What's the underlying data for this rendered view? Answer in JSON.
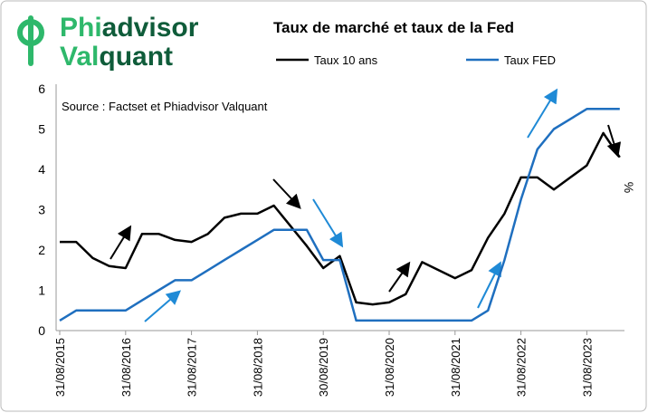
{
  "logo": {
    "part1a": "Phi",
    "part1b": "advisor",
    "part2a": "Val",
    "part2b": "quant"
  },
  "chart_data": {
    "type": "line",
    "title": "Taux de marché et taux de la Fed",
    "annotation": "Source : Factset et Phiadvisor Valquant",
    "y_label": "%",
    "categories": [
      "31/08/2015",
      null,
      null,
      null,
      "31/08/2016",
      null,
      null,
      null,
      "31/08/2017",
      null,
      null,
      null,
      "31/08/2018",
      null,
      null,
      null,
      "30/08/2019",
      null,
      null,
      null,
      "31/08/2020",
      null,
      null,
      null,
      "31/08/2021",
      null,
      null,
      null,
      "31/08/2022",
      null,
      null,
      null,
      "31/08/2023",
      null,
      null
    ],
    "series": [
      {
        "name": "Taux 10 ans",
        "color": "#000000",
        "values": [
          2.2,
          2.2,
          1.8,
          1.6,
          1.55,
          2.4,
          2.4,
          2.25,
          2.2,
          2.4,
          2.8,
          2.9,
          2.9,
          3.1,
          2.6,
          2.1,
          1.55,
          1.85,
          0.7,
          0.65,
          0.7,
          0.9,
          1.7,
          1.5,
          1.3,
          1.5,
          2.3,
          2.9,
          3.8,
          3.8,
          3.5,
          3.8,
          4.1,
          4.9,
          4.3
        ]
      },
      {
        "name": "Taux FED",
        "color": "#1f6fbf",
        "values": [
          0.25,
          0.5,
          0.5,
          0.5,
          0.5,
          0.75,
          1.0,
          1.25,
          1.25,
          1.5,
          1.75,
          2.0,
          2.25,
          2.5,
          2.5,
          2.5,
          1.75,
          1.75,
          0.25,
          0.25,
          0.25,
          0.25,
          0.25,
          0.25,
          0.25,
          0.25,
          0.5,
          1.75,
          3.25,
          4.5,
          5.0,
          5.25,
          5.5,
          5.5,
          5.5
        ]
      }
    ],
    "ylim": [
      0,
      6
    ],
    "yticks": [
      0,
      1,
      2,
      3,
      4,
      5,
      6
    ],
    "grid": false,
    "legend": "top"
  }
}
